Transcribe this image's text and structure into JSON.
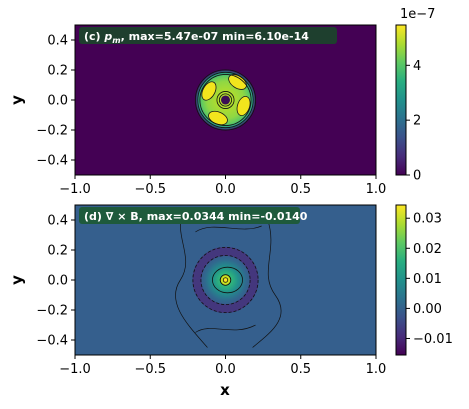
{
  "chart_data": [
    {
      "type": "heatmap",
      "panel_id": "c",
      "title": "(c) p_m, max=5.47e-07 min=6.10e-14",
      "title_prefix": "(c) ",
      "title_symbol": "p",
      "title_subscript": "m",
      "title_suffix": ", max=5.47e-07 min=6.10e-14",
      "xlabel": "",
      "ylabel": "y",
      "xlim": [
        -1.0,
        1.0
      ],
      "ylim": [
        -0.5,
        0.5
      ],
      "xticks": [
        "−1.0",
        "−0.5",
        "0.0",
        "0.5",
        "1.0"
      ],
      "xtick_values": [
        -1.0,
        -0.5,
        0.0,
        0.5,
        1.0
      ],
      "yticks": [
        "−0.4",
        "−0.2",
        "0.0",
        "0.2",
        "0.4"
      ],
      "ytick_values": [
        -0.4,
        -0.2,
        0.0,
        0.2,
        0.4
      ],
      "colormap": "viridis",
      "background_color": "#440154",
      "value_min": 6.1e-14,
      "value_max": 5.47e-07,
      "colorbar": {
        "range": [
          0,
          5.47e-07
        ],
        "ticks": [
          "0",
          "2",
          "4"
        ],
        "tick_values": [
          0,
          2e-07,
          4e-07
        ],
        "offset_text": "1e−7"
      },
      "features": {
        "center": [
          0.0,
          0.0
        ],
        "ring_outer_radius": 0.2,
        "ring_inner_radius": 0.03,
        "lobes": [
          {
            "x": 0.08,
            "y": 0.12
          },
          {
            "x": -0.11,
            "y": 0.06
          },
          {
            "x": -0.05,
            "y": -0.12
          },
          {
            "x": 0.12,
            "y": -0.04
          }
        ]
      }
    },
    {
      "type": "heatmap",
      "panel_id": "d",
      "title": "(d) ∇ × B, max=0.0344 min=-0.0140",
      "xlabel": "x",
      "ylabel": "y",
      "xlim": [
        -1.0,
        1.0
      ],
      "ylim": [
        -0.5,
        0.5
      ],
      "xticks": [
        "−1.0",
        "−0.5",
        "0.0",
        "0.5",
        "1.0"
      ],
      "xtick_values": [
        -1.0,
        -0.5,
        0.0,
        0.5,
        1.0
      ],
      "yticks": [
        "−0.4",
        "−0.2",
        "0.0",
        "0.2",
        "0.4"
      ],
      "ytick_values": [
        -0.4,
        -0.2,
        0.0,
        0.2,
        0.4
      ],
      "colormap": "viridis",
      "background_color": "#355f8d",
      "value_min": -0.014,
      "value_max": 0.0344,
      "colorbar": {
        "range": [
          -0.0155,
          0.0344
        ],
        "ticks": [
          "0.03",
          "0.02",
          "0.01",
          "0.00",
          "−0.01"
        ],
        "tick_values": [
          0.03,
          0.02,
          0.01,
          0.0,
          -0.01
        ]
      },
      "features": {
        "center_peak": [
          0.0,
          0.0
        ],
        "negative_ring_radius": 0.19
      }
    }
  ]
}
